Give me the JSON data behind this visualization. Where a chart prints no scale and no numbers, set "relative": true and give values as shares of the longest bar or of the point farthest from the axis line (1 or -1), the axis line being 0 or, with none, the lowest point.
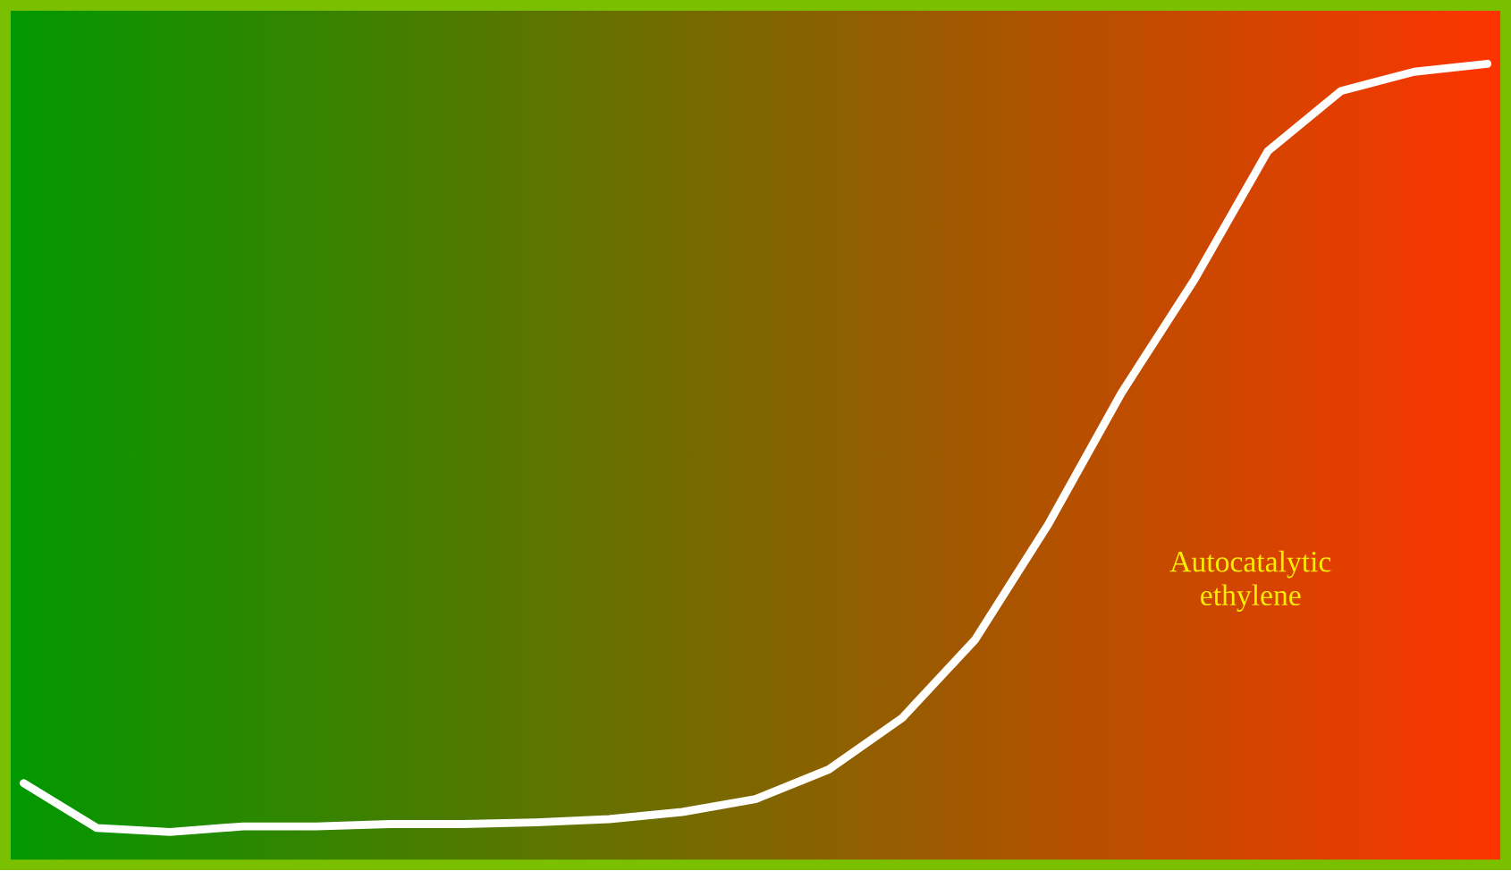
{
  "chart_data": {
    "type": "line",
    "relative": true,
    "categories": [
      null,
      null,
      null,
      null,
      null,
      null,
      null,
      null,
      null,
      null,
      null,
      null,
      null,
      null,
      null,
      null,
      null,
      null,
      null,
      null,
      null
    ],
    "series": [
      {
        "color": "#ffffff",
        "values": [
          0.102,
          0.046,
          0.041,
          0.048,
          0.048,
          0.051,
          0.051,
          0.053,
          0.057,
          0.066,
          0.082,
          0.119,
          0.183,
          0.281,
          0.425,
          0.589,
          0.731,
          0.891,
          0.966,
          0.99,
          1
        ]
      }
    ],
    "annotations": [
      "Autocatalytic ethylene"
    ],
    "marker": "none",
    "line_style": "solid"
  }
}
